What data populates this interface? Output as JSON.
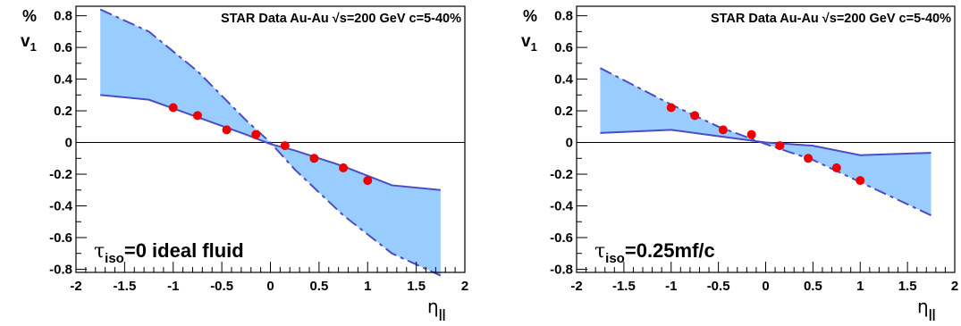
{
  "chart_data": [
    {
      "type": "area",
      "panel": "left",
      "ylabel_top": "%",
      "ylabel": "v",
      "ylabel_sub": "1",
      "xlabel": "η",
      "xlabel_sub": "||",
      "header": "STAR Data  Au-Au  √s=200 GeV c=5-40%",
      "annotation": "τ",
      "annotation_sub": "iso",
      "annotation_rest": "=0    ideal fluid",
      "xlim": [
        -2,
        2
      ],
      "ylim": [
        -0.82,
        0.86
      ],
      "x_ticks": [
        "-2",
        "-1.5",
        "-1",
        "-0.5",
        "0",
        "0.5",
        "1",
        "1.5",
        "2"
      ],
      "y_ticks": [
        "0.8",
        "0.6",
        "0.4",
        "0.2",
        "0",
        "-0.2",
        "-0.4",
        "-0.6",
        "-0.8"
      ],
      "band_color": "#99ccff",
      "line_color": "#4c4cc8",
      "point_color": "#ee0000",
      "band_solid": {
        "x": [
          -1.75,
          -1.25,
          -0.75,
          -0.25,
          0,
          0.25,
          0.75,
          1.25,
          1.75
        ],
        "y": [
          0.3,
          0.27,
          0.16,
          0.05,
          -0.01,
          -0.05,
          -0.15,
          -0.27,
          -0.3
        ]
      },
      "band_dashed": {
        "x": [
          -1.75,
          -1.25,
          -0.75,
          -0.25,
          0,
          0.25,
          0.75,
          1.25,
          1.75
        ],
        "y": [
          0.84,
          0.7,
          0.45,
          0.14,
          0.0,
          -0.17,
          -0.46,
          -0.7,
          -0.84
        ]
      },
      "points": {
        "x": [
          -1.0,
          -0.75,
          -0.45,
          -0.15,
          0.15,
          0.45,
          0.75,
          1.0
        ],
        "y": [
          0.22,
          0.17,
          0.08,
          0.05,
          -0.02,
          -0.1,
          -0.16,
          -0.24
        ]
      }
    },
    {
      "type": "area",
      "panel": "right",
      "ylabel_top": "%",
      "ylabel": "v",
      "ylabel_sub": "1",
      "xlabel": "η",
      "xlabel_sub": "||",
      "header": "STAR Data  Au-Au  √s=200 GeV c=5-40%",
      "annotation": "τ",
      "annotation_sub": "iso",
      "annotation_rest": "=0.25mf/c",
      "xlim": [
        -2,
        2
      ],
      "ylim": [
        -0.82,
        0.86
      ],
      "x_ticks": [
        "-2",
        "-1.5",
        "-1",
        "-0.5",
        "0",
        "0.5",
        "1",
        "1.5",
        "2"
      ],
      "y_ticks": [
        "0.8",
        "0.6",
        "0.4",
        "0.2",
        "0",
        "-0.2",
        "-0.4",
        "-0.6",
        "-0.8"
      ],
      "band_color": "#99ccff",
      "line_color": "#4c4cc8",
      "point_color": "#ee0000",
      "band_solid": {
        "x": [
          -1.75,
          -1.0,
          -0.5,
          0,
          0.5,
          1.0,
          1.75
        ],
        "y": [
          0.06,
          0.08,
          0.04,
          0.0,
          -0.02,
          -0.08,
          -0.065
        ]
      },
      "band_dashed": {
        "x": [
          -1.75,
          -1.0,
          -0.5,
          0,
          0.5,
          1.0,
          1.75
        ],
        "y": [
          0.47,
          0.24,
          0.1,
          -0.01,
          -0.11,
          -0.25,
          -0.46
        ]
      },
      "points": {
        "x": [
          -1.0,
          -0.75,
          -0.45,
          -0.15,
          0.15,
          0.45,
          0.75,
          1.0
        ],
        "y": [
          0.22,
          0.17,
          0.08,
          0.05,
          -0.02,
          -0.1,
          -0.16,
          -0.24
        ]
      }
    }
  ]
}
